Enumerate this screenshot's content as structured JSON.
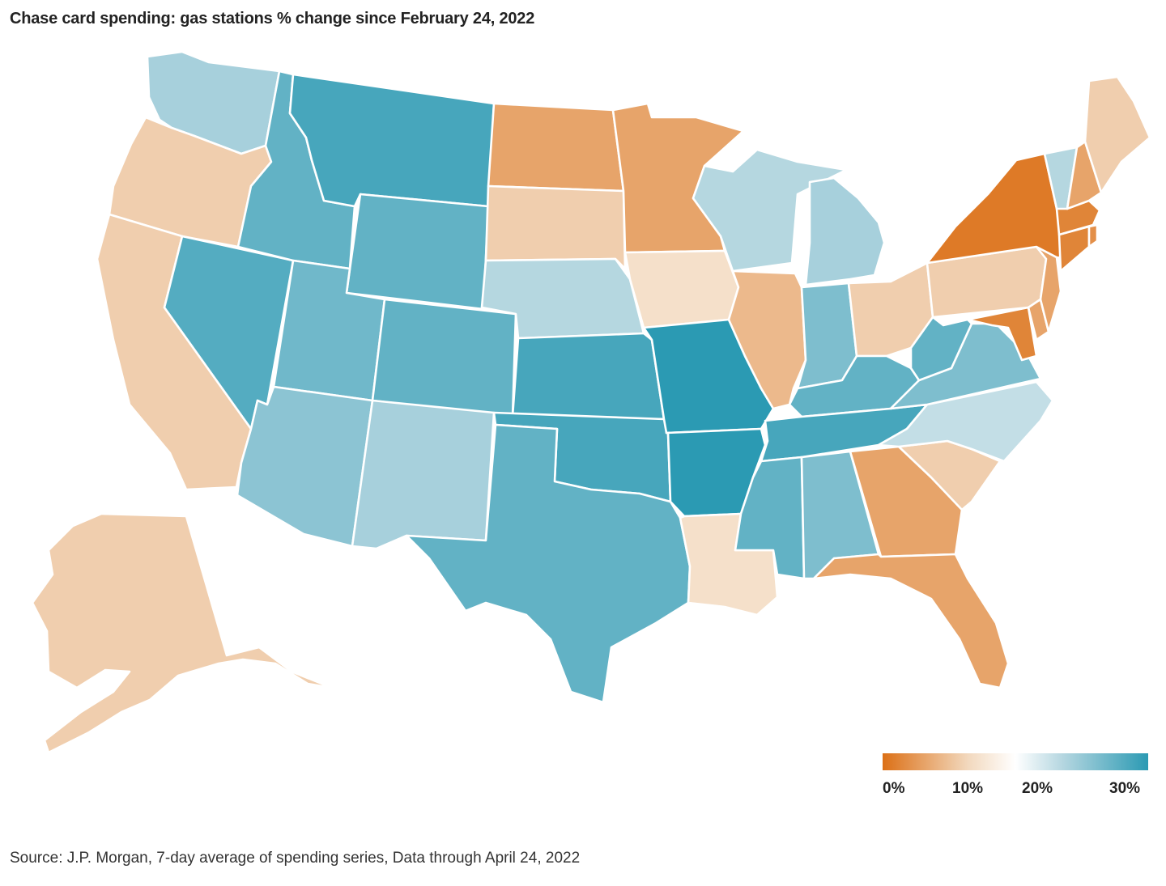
{
  "title": "Chase card spending: gas stations % change since February 24, 2022",
  "source": "Source: J.P. Morgan, 7-day average of spending series, Data through April 24, 2022",
  "legend": {
    "ticks": [
      "0%",
      "10%",
      "20%",
      "30%"
    ],
    "tick_values": [
      0,
      10,
      20,
      30
    ],
    "colors": {
      "low": "#dc7016",
      "mid_warm": "#f2d8bd",
      "zero": "#ffffff",
      "mid_cool": "#b4d6e0",
      "high": "#2b9ab3"
    }
  },
  "chart_data": {
    "type": "choropleth",
    "title": "Chase card spending: gas stations % change since February 24, 2022",
    "unit": "% change",
    "scale": {
      "min": 0,
      "max": 31
    },
    "states": {
      "WA": 22,
      "OR": 9,
      "CA": 9,
      "NV": 28,
      "ID": 27,
      "MT": 29,
      "WY": 27,
      "UT": 26,
      "AZ": 24,
      "CO": 27,
      "NM": 22,
      "ND": 5,
      "SD": 9,
      "NE": 21,
      "KS": 29,
      "OK": 29,
      "TX": 27,
      "MN": 5,
      "IA": 11,
      "MO": 31,
      "AR": 31,
      "LA": 11,
      "WI": 21,
      "IL": 7,
      "MI": 22,
      "IN": 25,
      "OH": 9,
      "KY": 27,
      "TN": 29,
      "MS": 27,
      "AL": 25,
      "GA": 5,
      "FL": 5,
      "SC": 9,
      "NC": 20,
      "VA": 25,
      "WV": 27,
      "PA": 9,
      "NY": 1,
      "VT": 21,
      "NH": 5,
      "ME": 9,
      "MA": 2,
      "CT": 2,
      "RI": 3,
      "NJ": 5,
      "DE": 5,
      "MD": 2,
      "AK": 9
    }
  }
}
